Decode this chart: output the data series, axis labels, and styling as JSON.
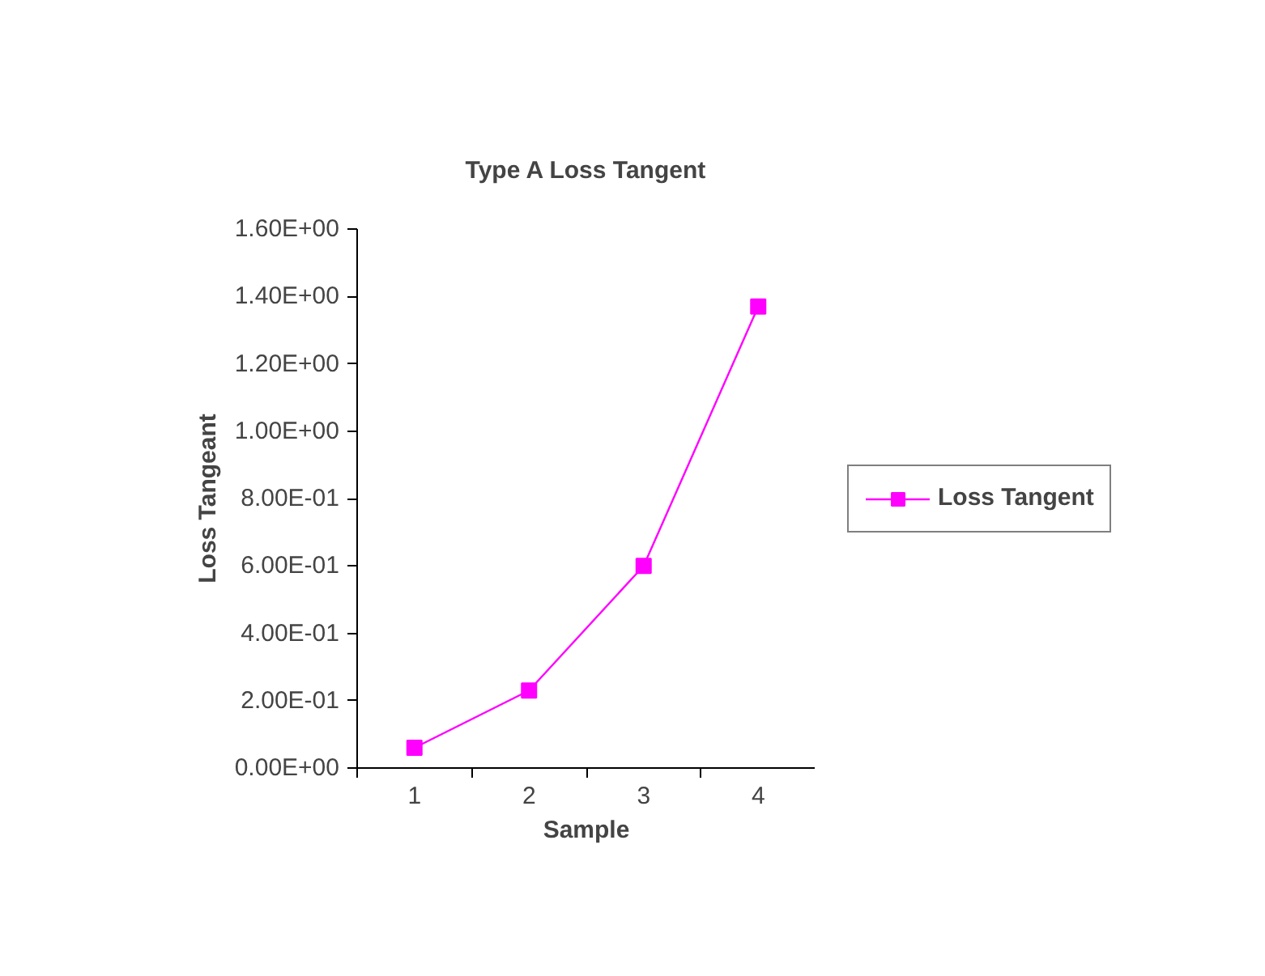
{
  "chart_data": {
    "type": "line",
    "title": "Type A Loss Tangent",
    "xlabel": "Sample",
    "ylabel": "Loss Tangeant",
    "categories": [
      "1",
      "2",
      "3",
      "4"
    ],
    "series": [
      {
        "name": "Loss Tangent",
        "color": "#ff00ff",
        "values": [
          0.06,
          0.23,
          0.6,
          1.37
        ]
      }
    ],
    "ylim": [
      0,
      1.6
    ],
    "yticks": [
      {
        "value": 0,
        "label": "0.00E+00"
      },
      {
        "value": 0.2,
        "label": "2.00E-01"
      },
      {
        "value": 0.4,
        "label": "4.00E-01"
      },
      {
        "value": 0.6,
        "label": "6.00E-01"
      },
      {
        "value": 0.8,
        "label": "8.00E-01"
      },
      {
        "value": 1.0,
        "label": "1.00E+00"
      },
      {
        "value": 1.2,
        "label": "1.20E+00"
      },
      {
        "value": 1.4,
        "label": "1.40E+00"
      },
      {
        "value": 1.6,
        "label": "1.60E+00"
      }
    ],
    "legend": "right",
    "marker": "square",
    "line_style": "solid"
  }
}
